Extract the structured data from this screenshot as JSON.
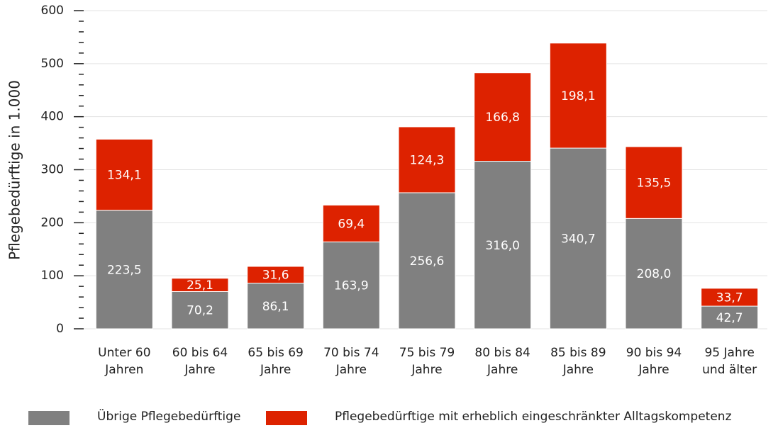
{
  "chart_data": {
    "type": "stacked_bar",
    "categories": [
      "Unter 60\nJahren",
      "60 bis 64\nJahre",
      "65 bis 69\nJahre",
      "70 bis 74\nJahre",
      "75 bis 79\nJahre",
      "80 bis 84\nJahre",
      "85 bis 89\nJahre",
      "90 bis 94\nJahre",
      "95 Jahre\nund älter"
    ],
    "series": [
      {
        "name": "Übrige Pflegebedürftige",
        "color": "#808080",
        "values": [
          223.5,
          70.2,
          86.1,
          163.9,
          256.6,
          316.0,
          340.7,
          208.0,
          42.7
        ],
        "value_labels": [
          "223,5",
          "70,2",
          "86,1",
          "163,9",
          "256,6",
          "316,0",
          "340,7",
          "208,0",
          "42,7"
        ]
      },
      {
        "name": "Pflegebedürftige mit erheblich eingeschränkter Alltagskompetenz",
        "color": "#dd2200",
        "values": [
          134.1,
          25.1,
          31.6,
          69.4,
          124.3,
          166.8,
          198.1,
          135.5,
          33.7
        ],
        "value_labels": [
          "134,1",
          "25,1",
          "31,6",
          "69,4",
          "124,3",
          "166,8",
          "198,1",
          "135,5",
          "33,7"
        ]
      }
    ],
    "ylabel": "Pflegebedürftige in 1.000",
    "ylim": [
      0,
      600
    ],
    "yticks": [
      0,
      100,
      200,
      300,
      400,
      500,
      600
    ],
    "yminorticks": [
      20,
      40,
      60,
      80,
      120,
      140,
      160,
      180,
      220,
      240,
      260,
      280,
      320,
      340,
      360,
      380,
      420,
      440,
      460,
      480,
      520,
      540,
      560,
      580
    ],
    "grid": true,
    "legend": "bottom"
  }
}
